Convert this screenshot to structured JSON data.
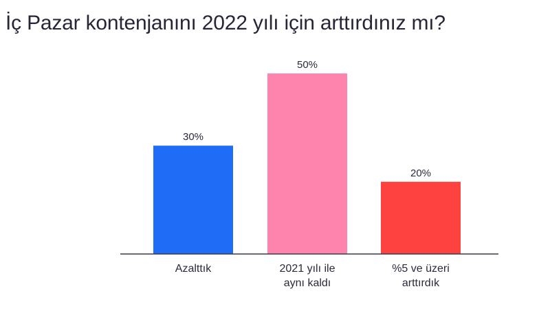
{
  "title": "İç Pazar kontenjanını 2022 yılı için arttırdınız mı?",
  "chart_data": {
    "type": "bar",
    "title": "İç Pazar kontenjanını 2022 yılı için arttırdınız mı?",
    "xlabel": "",
    "ylabel": "",
    "ylim": [
      0,
      50
    ],
    "grid": false,
    "legend": "none",
    "categories": [
      "Azalttık",
      "2021 yılı ile aynı kaldı",
      "%5 ve üzeri arttırdık"
    ],
    "category_lines": [
      [
        "Azalttık"
      ],
      [
        "2021 yılı ile",
        "aynı kaldı"
      ],
      [
        "%5 ve üzeri",
        "arttırdık"
      ]
    ],
    "values": [
      30,
      50,
      20
    ],
    "value_labels": [
      "30%",
      "50%",
      "20%"
    ],
    "colors": [
      "#1f6cf7",
      "#ff84ad",
      "#fe423f"
    ]
  }
}
